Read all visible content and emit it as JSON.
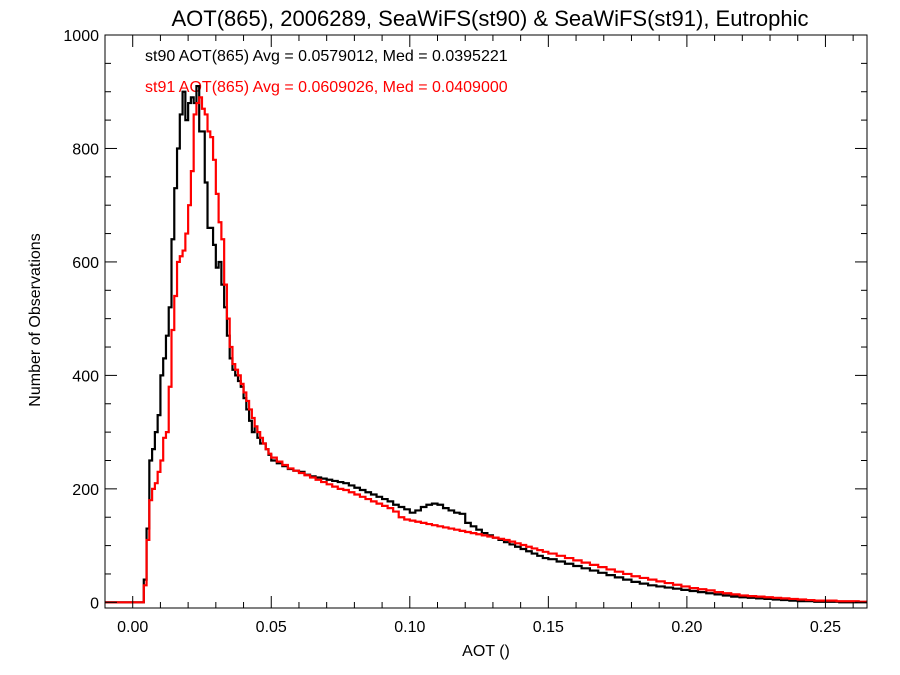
{
  "chart_data": {
    "type": "line",
    "title": "AOT(865), 2006289, SeaWiFS(st90) & SeaWiFS(st91), Eutrophic",
    "xlabel": "AOT ()",
    "ylabel": "Number of Observations",
    "xlim": [
      -0.01,
      0.265
    ],
    "ylim": [
      -10,
      1000
    ],
    "xticks": [
      "0.00",
      "0.05",
      "0.10",
      "0.15",
      "0.20",
      "0.25"
    ],
    "xtick_values": [
      0.0,
      0.05,
      0.1,
      0.15,
      0.2,
      0.25
    ],
    "yticks": [
      "0",
      "200",
      "400",
      "600",
      "800",
      "1000"
    ],
    "ytick_values": [
      0,
      200,
      400,
      600,
      800,
      1000
    ],
    "step_style": "histogram-steps",
    "series": [
      {
        "color": "#000000",
        "stats_text": "st90 AOT(865) Avg = 0.0579012, Med = 0.0395221",
        "points": [
          [
            -0.01,
            0
          ],
          [
            0.003,
            0
          ],
          [
            0.004,
            40
          ],
          [
            0.005,
            130
          ],
          [
            0.006,
            250
          ],
          [
            0.007,
            270
          ],
          [
            0.008,
            300
          ],
          [
            0.009,
            330
          ],
          [
            0.01,
            400
          ],
          [
            0.011,
            430
          ],
          [
            0.012,
            470
          ],
          [
            0.013,
            520
          ],
          [
            0.014,
            640
          ],
          [
            0.015,
            730
          ],
          [
            0.016,
            800
          ],
          [
            0.017,
            860
          ],
          [
            0.018,
            900
          ],
          [
            0.019,
            850
          ],
          [
            0.02,
            880
          ],
          [
            0.021,
            890
          ],
          [
            0.022,
            880
          ],
          [
            0.023,
            910
          ],
          [
            0.024,
            830
          ],
          [
            0.025,
            830
          ],
          [
            0.026,
            740
          ],
          [
            0.027,
            660
          ],
          [
            0.028,
            660
          ],
          [
            0.029,
            630
          ],
          [
            0.03,
            590
          ],
          [
            0.031,
            600
          ],
          [
            0.032,
            560
          ],
          [
            0.033,
            520
          ],
          [
            0.034,
            470
          ],
          [
            0.035,
            430
          ],
          [
            0.036,
            410
          ],
          [
            0.037,
            400
          ],
          [
            0.038,
            390
          ],
          [
            0.039,
            380
          ],
          [
            0.04,
            360
          ],
          [
            0.041,
            340
          ],
          [
            0.042,
            320
          ],
          [
            0.043,
            300
          ],
          [
            0.044,
            310
          ],
          [
            0.045,
            290
          ],
          [
            0.046,
            280
          ],
          [
            0.047,
            280
          ],
          [
            0.048,
            270
          ],
          [
            0.049,
            260
          ],
          [
            0.05,
            250
          ],
          [
            0.052,
            245
          ],
          [
            0.054,
            240
          ],
          [
            0.056,
            235
          ],
          [
            0.058,
            232
          ],
          [
            0.06,
            230
          ],
          [
            0.062,
            225
          ],
          [
            0.064,
            222
          ],
          [
            0.066,
            220
          ],
          [
            0.068,
            218
          ],
          [
            0.07,
            216
          ],
          [
            0.072,
            214
          ],
          [
            0.074,
            212
          ],
          [
            0.076,
            210
          ],
          [
            0.078,
            206
          ],
          [
            0.08,
            202
          ],
          [
            0.082,
            198
          ],
          [
            0.084,
            194
          ],
          [
            0.086,
            190
          ],
          [
            0.088,
            186
          ],
          [
            0.09,
            182
          ],
          [
            0.092,
            178
          ],
          [
            0.094,
            172
          ],
          [
            0.096,
            168
          ],
          [
            0.098,
            164
          ],
          [
            0.1,
            158
          ],
          [
            0.102,
            162
          ],
          [
            0.104,
            168
          ],
          [
            0.106,
            172
          ],
          [
            0.108,
            174
          ],
          [
            0.11,
            172
          ],
          [
            0.112,
            166
          ],
          [
            0.114,
            162
          ],
          [
            0.116,
            158
          ],
          [
            0.118,
            156
          ],
          [
            0.12,
            140
          ],
          [
            0.122,
            134
          ],
          [
            0.124,
            128
          ],
          [
            0.126,
            122
          ],
          [
            0.128,
            118
          ],
          [
            0.13,
            114
          ],
          [
            0.132,
            110
          ],
          [
            0.134,
            106
          ],
          [
            0.136,
            102
          ],
          [
            0.138,
            98
          ],
          [
            0.14,
            94
          ],
          [
            0.142,
            90
          ],
          [
            0.144,
            86
          ],
          [
            0.146,
            82
          ],
          [
            0.148,
            78
          ],
          [
            0.15,
            76
          ],
          [
            0.153,
            72
          ],
          [
            0.156,
            68
          ],
          [
            0.159,
            64
          ],
          [
            0.162,
            60
          ],
          [
            0.165,
            56
          ],
          [
            0.168,
            52
          ],
          [
            0.171,
            48
          ],
          [
            0.174,
            44
          ],
          [
            0.177,
            40
          ],
          [
            0.18,
            36
          ],
          [
            0.183,
            33
          ],
          [
            0.186,
            30
          ],
          [
            0.189,
            28
          ],
          [
            0.192,
            26
          ],
          [
            0.195,
            24
          ],
          [
            0.198,
            22
          ],
          [
            0.201,
            20
          ],
          [
            0.204,
            18
          ],
          [
            0.207,
            16
          ],
          [
            0.21,
            14
          ],
          [
            0.213,
            12
          ],
          [
            0.216,
            10
          ],
          [
            0.219,
            9
          ],
          [
            0.222,
            8
          ],
          [
            0.225,
            7
          ],
          [
            0.228,
            6
          ],
          [
            0.231,
            5
          ],
          [
            0.234,
            4
          ],
          [
            0.237,
            3
          ],
          [
            0.24,
            2
          ],
          [
            0.243,
            2
          ],
          [
            0.246,
            1
          ],
          [
            0.25,
            1
          ],
          [
            0.255,
            0
          ],
          [
            0.265,
            0
          ]
        ]
      },
      {
        "color": "#ff0000",
        "stats_text": "st91 AOT(865) Avg = 0.0609026, Med = 0.0409000",
        "points": [
          [
            -0.01,
            0
          ],
          [
            0.003,
            0
          ],
          [
            0.004,
            30
          ],
          [
            0.005,
            110
          ],
          [
            0.006,
            180
          ],
          [
            0.007,
            200
          ],
          [
            0.008,
            210
          ],
          [
            0.009,
            230
          ],
          [
            0.01,
            250
          ],
          [
            0.011,
            290
          ],
          [
            0.012,
            300
          ],
          [
            0.013,
            380
          ],
          [
            0.014,
            480
          ],
          [
            0.015,
            540
          ],
          [
            0.016,
            600
          ],
          [
            0.017,
            610
          ],
          [
            0.018,
            620
          ],
          [
            0.019,
            650
          ],
          [
            0.02,
            700
          ],
          [
            0.021,
            760
          ],
          [
            0.022,
            860
          ],
          [
            0.023,
            880
          ],
          [
            0.024,
            890
          ],
          [
            0.025,
            870
          ],
          [
            0.026,
            860
          ],
          [
            0.027,
            830
          ],
          [
            0.028,
            820
          ],
          [
            0.029,
            780
          ],
          [
            0.03,
            720
          ],
          [
            0.031,
            670
          ],
          [
            0.032,
            640
          ],
          [
            0.033,
            560
          ],
          [
            0.034,
            500
          ],
          [
            0.035,
            450
          ],
          [
            0.036,
            420
          ],
          [
            0.037,
            410
          ],
          [
            0.038,
            400
          ],
          [
            0.039,
            385
          ],
          [
            0.04,
            370
          ],
          [
            0.041,
            355
          ],
          [
            0.042,
            340
          ],
          [
            0.043,
            325
          ],
          [
            0.044,
            310
          ],
          [
            0.045,
            300
          ],
          [
            0.046,
            290
          ],
          [
            0.047,
            280
          ],
          [
            0.048,
            270
          ],
          [
            0.049,
            262
          ],
          [
            0.05,
            255
          ],
          [
            0.052,
            248
          ],
          [
            0.054,
            242
          ],
          [
            0.056,
            236
          ],
          [
            0.058,
            232
          ],
          [
            0.06,
            228
          ],
          [
            0.062,
            224
          ],
          [
            0.064,
            220
          ],
          [
            0.066,
            216
          ],
          [
            0.068,
            212
          ],
          [
            0.07,
            208
          ],
          [
            0.072,
            204
          ],
          [
            0.074,
            200
          ],
          [
            0.076,
            198
          ],
          [
            0.078,
            194
          ],
          [
            0.08,
            190
          ],
          [
            0.082,
            186
          ],
          [
            0.084,
            182
          ],
          [
            0.086,
            178
          ],
          [
            0.088,
            174
          ],
          [
            0.09,
            170
          ],
          [
            0.092,
            166
          ],
          [
            0.094,
            160
          ],
          [
            0.096,
            150
          ],
          [
            0.098,
            146
          ],
          [
            0.1,
            144
          ],
          [
            0.102,
            142
          ],
          [
            0.104,
            140
          ],
          [
            0.106,
            138
          ],
          [
            0.108,
            136
          ],
          [
            0.11,
            134
          ],
          [
            0.112,
            132
          ],
          [
            0.114,
            130
          ],
          [
            0.116,
            128
          ],
          [
            0.118,
            126
          ],
          [
            0.12,
            124
          ],
          [
            0.122,
            122
          ],
          [
            0.124,
            120
          ],
          [
            0.126,
            118
          ],
          [
            0.128,
            116
          ],
          [
            0.13,
            114
          ],
          [
            0.132,
            112
          ],
          [
            0.134,
            110
          ],
          [
            0.136,
            107
          ],
          [
            0.138,
            104
          ],
          [
            0.14,
            101
          ],
          [
            0.142,
            98
          ],
          [
            0.144,
            95
          ],
          [
            0.146,
            92
          ],
          [
            0.148,
            89
          ],
          [
            0.15,
            86
          ],
          [
            0.153,
            82
          ],
          [
            0.156,
            78
          ],
          [
            0.159,
            74
          ],
          [
            0.162,
            70
          ],
          [
            0.165,
            66
          ],
          [
            0.168,
            62
          ],
          [
            0.171,
            58
          ],
          [
            0.174,
            54
          ],
          [
            0.177,
            50
          ],
          [
            0.18,
            46
          ],
          [
            0.183,
            43
          ],
          [
            0.186,
            40
          ],
          [
            0.189,
            37
          ],
          [
            0.192,
            34
          ],
          [
            0.195,
            31
          ],
          [
            0.198,
            28
          ],
          [
            0.201,
            25
          ],
          [
            0.204,
            23
          ],
          [
            0.207,
            21
          ],
          [
            0.21,
            18
          ],
          [
            0.213,
            16
          ],
          [
            0.216,
            14
          ],
          [
            0.219,
            12
          ],
          [
            0.222,
            11
          ],
          [
            0.225,
            10
          ],
          [
            0.228,
            9
          ],
          [
            0.231,
            8
          ],
          [
            0.234,
            7
          ],
          [
            0.237,
            6
          ],
          [
            0.24,
            5
          ],
          [
            0.243,
            4
          ],
          [
            0.246,
            3
          ],
          [
            0.25,
            3
          ],
          [
            0.254,
            2
          ],
          [
            0.258,
            2
          ],
          [
            0.262,
            1
          ],
          [
            0.265,
            1
          ]
        ]
      }
    ]
  }
}
